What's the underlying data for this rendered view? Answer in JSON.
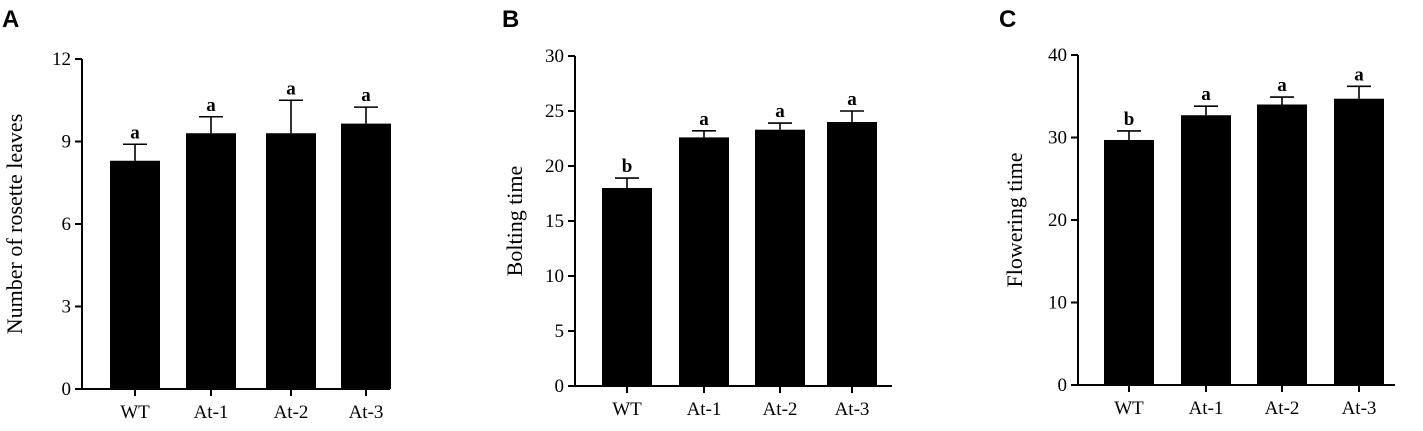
{
  "panels": [
    "A",
    "B",
    "C"
  ],
  "chart_data": [
    {
      "type": "bar",
      "categories": [
        "WT",
        "At-1",
        "At-2",
        "At-3"
      ],
      "values": [
        8.3,
        9.3,
        9.3,
        9.65
      ],
      "errors": [
        0.6,
        0.6,
        1.2,
        0.6
      ],
      "significance": [
        "a",
        "a",
        "a",
        "a"
      ],
      "ylabel": "Number of rosette leaves",
      "ylim": [
        0,
        12
      ],
      "yticks": [
        0,
        3,
        6,
        9,
        12
      ],
      "ytick_labels": [
        "0",
        "3",
        "6",
        "9",
        "12"
      ],
      "bar_color": "#000000",
      "grid": false
    },
    {
      "type": "bar",
      "categories": [
        "WT",
        "At-1",
        "At-2",
        "At-3"
      ],
      "values": [
        18.0,
        22.6,
        23.3,
        24.0
      ],
      "errors": [
        0.9,
        0.6,
        0.6,
        1.0
      ],
      "significance": [
        "b",
        "a",
        "a",
        "a"
      ],
      "ylabel": "Bolting time",
      "ylim": [
        0,
        30
      ],
      "yticks": [
        0,
        5,
        10,
        15,
        20,
        25,
        30
      ],
      "ytick_labels": [
        "0",
        "5",
        "10",
        "15",
        "20",
        "25",
        "30"
      ],
      "bar_color": "#000000",
      "grid": false
    },
    {
      "type": "bar",
      "categories": [
        "WT",
        "At-1",
        "At-2",
        "At-3"
      ],
      "values": [
        29.7,
        32.7,
        34.0,
        34.7
      ],
      "errors": [
        1.1,
        1.1,
        0.9,
        1.5
      ],
      "significance": [
        "b",
        "a",
        "a",
        "a"
      ],
      "ylabel": "Flowering time",
      "ylim": [
        0,
        40
      ],
      "yticks": [
        0,
        10,
        20,
        30,
        40
      ],
      "ytick_labels": [
        "0",
        "10",
        "20",
        "30",
        "40"
      ],
      "bar_color": "#000000",
      "grid": false
    }
  ]
}
